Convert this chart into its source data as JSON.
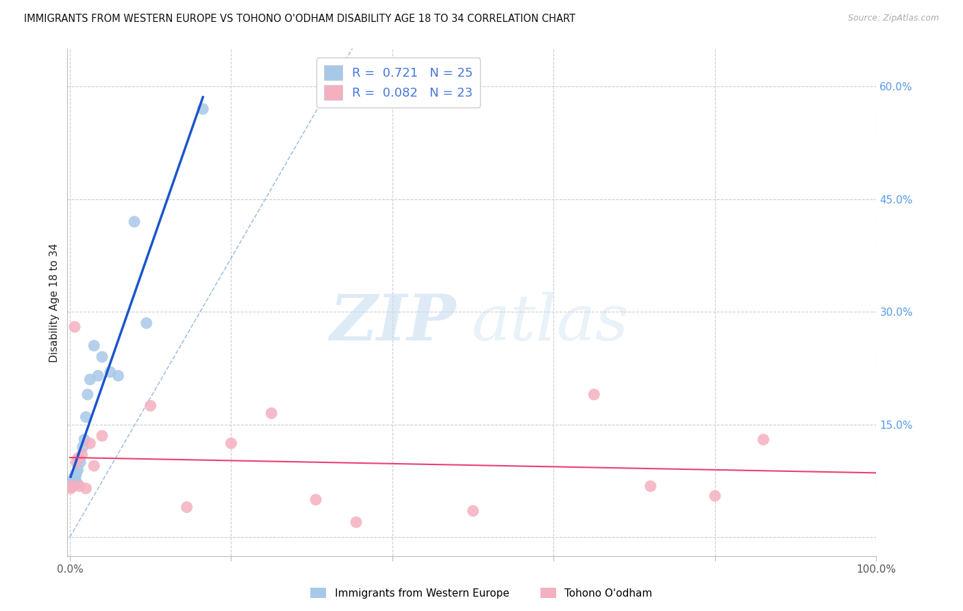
{
  "title": "IMMIGRANTS FROM WESTERN EUROPE VS TOHONO O'ODHAM DISABILITY AGE 18 TO 34 CORRELATION CHART",
  "source": "Source: ZipAtlas.com",
  "ylabel": "Disability Age 18 to 34",
  "xlim": [
    -0.003,
    1.0
  ],
  "ylim": [
    -0.025,
    0.65
  ],
  "R_blue": "0.721",
  "N_blue": "25",
  "R_pink": "0.082",
  "N_pink": "23",
  "blue_color": "#a8c8e8",
  "pink_color": "#f5b0c0",
  "blue_line_color": "#1a55cc",
  "pink_line_color": "#e84070",
  "legend_text_color": "#4477dd",
  "ytick_color": "#5599ee",
  "blue_label": "Immigrants from Western Europe",
  "pink_label": "Tohono O'odham",
  "diag_color": "#99bbdd",
  "blue_x": [
    0.001,
    0.002,
    0.003,
    0.004,
    0.005,
    0.006,
    0.007,
    0.008,
    0.009,
    0.01,
    0.012,
    0.013,
    0.016,
    0.018,
    0.02,
    0.022,
    0.025,
    0.03,
    0.035,
    0.04,
    0.05,
    0.06,
    0.08,
    0.095,
    0.165
  ],
  "blue_y": [
    0.068,
    0.07,
    0.072,
    0.075,
    0.08,
    0.075,
    0.08,
    0.085,
    0.072,
    0.09,
    0.105,
    0.1,
    0.12,
    0.13,
    0.16,
    0.19,
    0.21,
    0.255,
    0.215,
    0.24,
    0.22,
    0.215,
    0.42,
    0.285,
    0.57
  ],
  "pink_x": [
    0.001,
    0.002,
    0.004,
    0.006,
    0.008,
    0.01,
    0.012,
    0.015,
    0.02,
    0.025,
    0.03,
    0.04,
    0.1,
    0.145,
    0.2,
    0.25,
    0.305,
    0.355,
    0.5,
    0.65,
    0.72,
    0.8,
    0.86
  ],
  "pink_y": [
    0.065,
    0.068,
    0.068,
    0.28,
    0.1,
    0.105,
    0.068,
    0.11,
    0.065,
    0.125,
    0.095,
    0.135,
    0.175,
    0.04,
    0.125,
    0.165,
    0.05,
    0.02,
    0.035,
    0.19,
    0.068,
    0.055,
    0.13
  ]
}
